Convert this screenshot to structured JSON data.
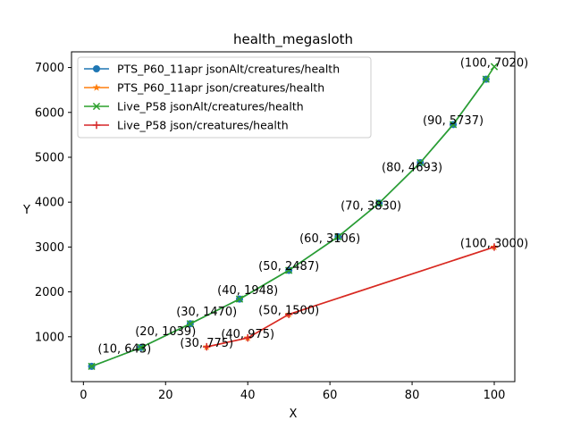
{
  "chart_data": {
    "type": "line",
    "title": "health_megasloth",
    "xlabel": "X",
    "ylabel": "Y",
    "xlim": [
      -2.9,
      105
    ],
    "ylim": [
      0,
      7350
    ],
    "x_ticks": [
      0,
      20,
      40,
      60,
      80,
      100
    ],
    "y_ticks": [
      1000,
      2000,
      3000,
      4000,
      5000,
      6000,
      7000
    ],
    "grid": false,
    "legend_position": "upper-left",
    "series": [
      {
        "name": "PTS_P60_11apr jsonAlt/creatures/health",
        "color": "#1f77b4",
        "marker": "circle",
        "x": [
          2,
          14,
          26,
          38,
          50,
          62,
          72,
          82,
          90,
          98
        ],
        "y": [
          340,
          760,
          1290,
          1840,
          2480,
          3230,
          3980,
          4880,
          5730,
          6740
        ]
      },
      {
        "name": "PTS_P60_11apr json/creatures/health",
        "color": "#ff7f0e",
        "marker": "star",
        "x": [
          30,
          40,
          50,
          100
        ],
        "y": [
          775,
          975,
          1500,
          3000
        ]
      },
      {
        "name": "Live_P58 jsonAlt/creatures/health",
        "color": "#2ca02c",
        "marker": "x",
        "x": [
          2,
          14,
          26,
          38,
          50,
          62,
          72,
          82,
          90,
          98,
          100
        ],
        "y": [
          340,
          760,
          1290,
          1840,
          2480,
          3230,
          3980,
          4880,
          5730,
          6740,
          7020
        ]
      },
      {
        "name": "Live_P58 json/creatures/health",
        "color": "#d62728",
        "marker": "plus",
        "x": [
          30,
          40,
          50,
          100
        ],
        "y": [
          775,
          975,
          1500,
          3000
        ]
      }
    ],
    "annotations": [
      {
        "text": "(10, 643)",
        "x": 10,
        "y": 643
      },
      {
        "text": "(20, 1039)",
        "x": 20,
        "y": 1039
      },
      {
        "text": "(30, 1470)",
        "x": 30,
        "y": 1470
      },
      {
        "text": "(40, 1948)",
        "x": 40,
        "y": 1948
      },
      {
        "text": "(50, 2487)",
        "x": 50,
        "y": 2487
      },
      {
        "text": "(60, 3106)",
        "x": 60,
        "y": 3106
      },
      {
        "text": "(70, 3830)",
        "x": 70,
        "y": 3830
      },
      {
        "text": "(80, 4693)",
        "x": 80,
        "y": 4693
      },
      {
        "text": "(90, 5737)",
        "x": 90,
        "y": 5737
      },
      {
        "text": "(100, 7020)",
        "x": 100,
        "y": 7020
      },
      {
        "text": "(30, 775)",
        "x": 30,
        "y": 775
      },
      {
        "text": "(40, 975)",
        "x": 40,
        "y": 975
      },
      {
        "text": "(50, 1500)",
        "x": 50,
        "y": 1500
      },
      {
        "text": "(100, 3000)",
        "x": 100,
        "y": 3000
      }
    ]
  }
}
